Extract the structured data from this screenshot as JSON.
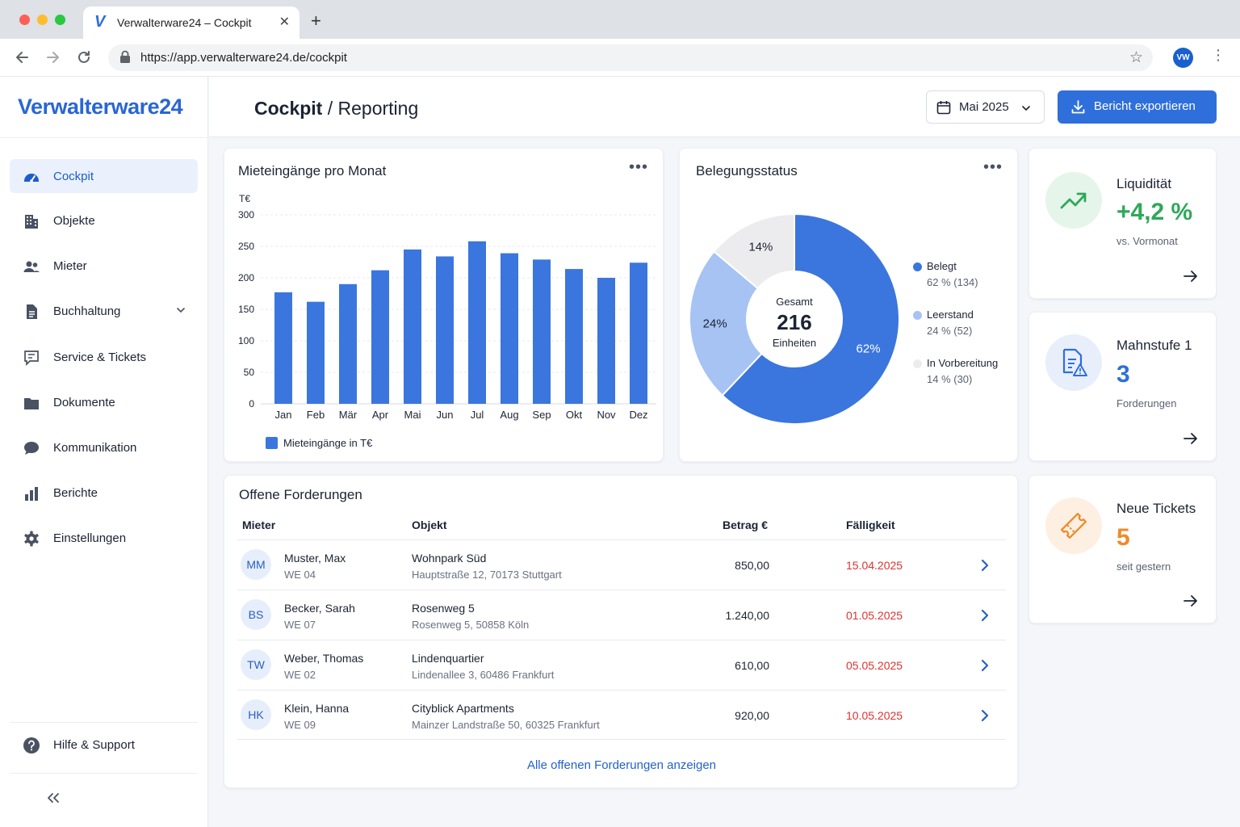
{
  "browser": {
    "tab_title": "Verwalterware24 – Cockpit",
    "tab_favicon": "V",
    "url": "https://app.verwalterware24.de/cockpit",
    "profile_initials": "VW"
  },
  "sidebar": {
    "logo": "Verwalterware24",
    "items": [
      {
        "label": "Cockpit",
        "icon": "gauge-icon",
        "active": true
      },
      {
        "label": "Objekte",
        "icon": "building-icon"
      },
      {
        "label": "Mieter",
        "icon": "users-icon"
      },
      {
        "label": "Buchhaltung",
        "icon": "document-icon",
        "expandable": true
      },
      {
        "label": "Service & Tickets",
        "icon": "chat-list-icon"
      },
      {
        "label": "Dokumente",
        "icon": "folder-icon"
      },
      {
        "label": "Kommunikation",
        "icon": "speech-bubble-icon"
      },
      {
        "label": "Berichte",
        "icon": "bar-chart-icon"
      },
      {
        "label": "Einstellungen",
        "icon": "gear-icon"
      }
    ],
    "help_label": "Hilfe & Support",
    "collapse_icon": "double-chevron-left-icon"
  },
  "header": {
    "title_main": "Cockpit",
    "title_sep": "/",
    "title_sub": "Reporting",
    "date_value": "Mai 2025",
    "export_label": "Bericht exportieren"
  },
  "rent_chart": {
    "title": "Mieteingänge pro Monat",
    "legend": "Mieteingänge in T€"
  },
  "occupancy": {
    "title": "Belegungsstatus",
    "center_label": "Gesamt",
    "center_value": "216",
    "center_unit": "Einheiten",
    "slice_labels": [
      "62%",
      "24%",
      "14%"
    ],
    "legend": [
      {
        "name": "Belegt",
        "detail": "62 % (134)",
        "color": "#3a76dd"
      },
      {
        "name": "Leerstand",
        "detail": "24 % (52)",
        "color": "#a6c3f3"
      },
      {
        "name": "In Vorbereitung",
        "detail": "14 % (30)",
        "color": "#ececee"
      }
    ]
  },
  "kpis": [
    {
      "title": "Liquidität",
      "value": "+4,2 %",
      "sub": "vs. Vormonat",
      "color": "#2fa85a",
      "bg": "#e6f5ea",
      "icon": "trend-up-icon"
    },
    {
      "title": "Mahnstufe 1",
      "value": "3",
      "sub": "Forderungen",
      "color": "#2f6fdb",
      "bg": "#e8effb",
      "icon": "document-warning-icon"
    },
    {
      "title": "Neue Tickets",
      "value": "5",
      "sub": "seit gestern",
      "color": "#ef8a2b",
      "bg": "#fdf0e2",
      "icon": "ticket-icon"
    }
  ],
  "claims": {
    "title": "Offene Forderungen",
    "headers": {
      "tenant": "Mieter",
      "object": "Objekt",
      "amount": "Betrag €",
      "due": "Fälligkeit"
    },
    "rows": [
      {
        "initials": "MM",
        "name": "Muster, Max",
        "unit": "WE 04",
        "object": "Wohnpark Süd",
        "address": "Hauptstraße 12, 70173 Stuttgart",
        "amount": "850,00",
        "due": "15.04.2025"
      },
      {
        "initials": "BS",
        "name": "Becker, Sarah",
        "unit": "WE 07",
        "object": "Rosenweg 5",
        "address": "Rosenweg 5, 50858 Köln",
        "amount": "1.240,00",
        "due": "01.05.2025"
      },
      {
        "initials": "TW",
        "name": "Weber, Thomas",
        "unit": "WE 02",
        "object": "Lindenquartier",
        "address": "Lindenallee 3, 60486 Frankfurt",
        "amount": "610,00",
        "due": "05.05.2025"
      },
      {
        "initials": "HK",
        "name": "Klein, Hanna",
        "unit": "WE 09",
        "object": "Cityblick Apartments",
        "address": "Mainzer Landstraße 50, 60325 Frankfurt",
        "amount": "920,00",
        "due": "10.05.2025"
      }
    ],
    "show_all": "Alle offenen Forderungen anzeigen"
  },
  "chart_data": [
    {
      "type": "bar",
      "title": "Mieteingänge pro Monat",
      "ylabel": "T€",
      "categories": [
        "Jan",
        "Feb",
        "Mär",
        "Apr",
        "Mai",
        "Jun",
        "Jul",
        "Aug",
        "Sep",
        "Okt",
        "Nov",
        "Dez"
      ],
      "series": [
        {
          "name": "Mieteingänge in T€",
          "values": [
            177,
            162,
            190,
            212,
            245,
            234,
            258,
            239,
            229,
            214,
            200,
            224
          ],
          "color": "#3a76dd"
        }
      ],
      "ylim": [
        0,
        300
      ],
      "yticks": [
        0,
        50,
        100,
        150,
        200,
        250,
        300
      ],
      "grid": true,
      "legend": "bottom-left"
    },
    {
      "type": "pie",
      "title": "Belegungsstatus",
      "categories": [
        "Belegt",
        "Leerstand",
        "In Vorbereitung"
      ],
      "values": [
        134,
        52,
        30
      ],
      "percent": [
        62,
        24,
        14
      ],
      "donut": true,
      "legend": "right"
    }
  ]
}
